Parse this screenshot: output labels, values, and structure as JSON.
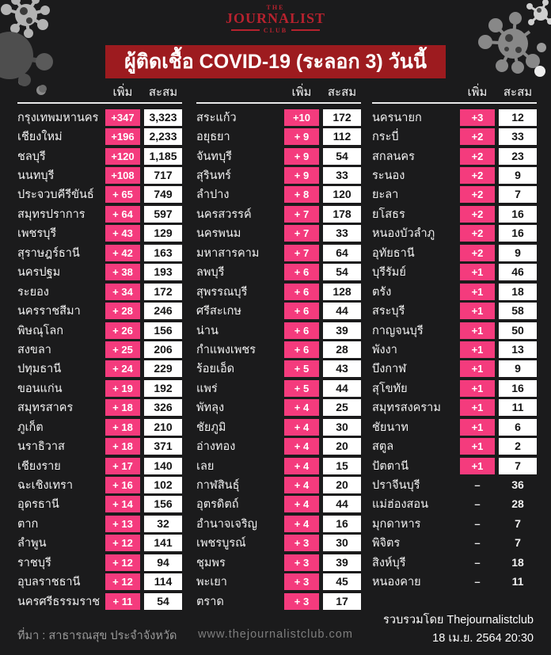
{
  "logo": {
    "the": "THE",
    "name": "JOURNALIST",
    "club": "CLUB"
  },
  "title": "ผู้ติดเชื้อ COVID-19 (ระลอก 3) วันนี้",
  "colors": {
    "accent_pink": "#f43b7d",
    "title_bar_red": "#9d1b1f",
    "logo_red": "#b6222e",
    "background": "#1b1b1c"
  },
  "footer": {
    "source": "ที่มา : สาธารณสุข ประจำจังหวัด",
    "website": "www.thejournalistclub.com",
    "credit": "รวบรวมโดย Thejournalistclub",
    "datetime": "18 เม.ย. 2564 20:30"
  },
  "chart_data": {
    "type": "table",
    "title": "ผู้ติดเชื้อ COVID-19 (ระลอก 3) วันนี้",
    "column_headers": [
      "เพิ่ม",
      "สะสม"
    ],
    "columns": [
      {
        "rows": [
          {
            "province": "กรุงเทพมหานคร",
            "added": "+347",
            "total": "3,323"
          },
          {
            "province": "เชียงใหม่",
            "added": "+196",
            "total": "2,233"
          },
          {
            "province": "ชลบุรี",
            "added": "+120",
            "total": "1,185"
          },
          {
            "province": "นนทบุรี",
            "added": "+108",
            "total": "717"
          },
          {
            "province": "ประจวบคีรีขันธ์",
            "added": "+ 65",
            "total": "749"
          },
          {
            "province": "สมุทรปราการ",
            "added": "+ 64",
            "total": "597"
          },
          {
            "province": "เพชรบุรี",
            "added": "+ 43",
            "total": "129"
          },
          {
            "province": "สุราษฎร์ธานี",
            "added": "+ 42",
            "total": "163"
          },
          {
            "province": "นครปฐม",
            "added": "+ 38",
            "total": "193"
          },
          {
            "province": "ระยอง",
            "added": "+ 34",
            "total": "172"
          },
          {
            "province": "นครราชสีมา",
            "added": "+ 28",
            "total": "246"
          },
          {
            "province": "พิษณุโลก",
            "added": "+ 26",
            "total": "156"
          },
          {
            "province": "สงขลา",
            "added": "+ 25",
            "total": "206"
          },
          {
            "province": "ปทุมธานี",
            "added": "+ 24",
            "total": "229"
          },
          {
            "province": "ขอนแก่น",
            "added": "+ 19",
            "total": "192"
          },
          {
            "province": "สมุทรสาคร",
            "added": "+ 18",
            "total": "326"
          },
          {
            "province": "ภูเก็ต",
            "added": "+ 18",
            "total": "210"
          },
          {
            "province": "นราธิวาส",
            "added": "+ 18",
            "total": "371"
          },
          {
            "province": "เชียงราย",
            "added": "+ 17",
            "total": "140"
          },
          {
            "province": "ฉะเชิงเทรา",
            "added": "+ 16",
            "total": "102"
          },
          {
            "province": "อุดรธานี",
            "added": "+ 14",
            "total": "156"
          },
          {
            "province": "ตาก",
            "added": "+ 13",
            "total": "32"
          },
          {
            "province": "ลำพูน",
            "added": "+ 12",
            "total": "141"
          },
          {
            "province": "ราชบุรี",
            "added": "+ 12",
            "total": "94"
          },
          {
            "province": "อุบลราชธานี",
            "added": "+ 12",
            "total": "114"
          },
          {
            "province": "นครศรีธรรมราช",
            "added": "+ 11",
            "total": "54"
          }
        ]
      },
      {
        "rows": [
          {
            "province": "สระแก้ว",
            "added": "+10",
            "total": "172"
          },
          {
            "province": "อยุธยา",
            "added": "+ 9",
            "total": "112"
          },
          {
            "province": "จันทบุรี",
            "added": "+ 9",
            "total": "54"
          },
          {
            "province": "สุรินทร์",
            "added": "+ 9",
            "total": "33"
          },
          {
            "province": "ลำปาง",
            "added": "+ 8",
            "total": "120"
          },
          {
            "province": "นครสวรรค์",
            "added": "+ 7",
            "total": "178"
          },
          {
            "province": "นครพนม",
            "added": "+ 7",
            "total": "33"
          },
          {
            "province": "มหาสารคาม",
            "added": "+ 7",
            "total": "64"
          },
          {
            "province": "ลพบุรี",
            "added": "+ 6",
            "total": "54"
          },
          {
            "province": "สุพรรณบุรี",
            "added": "+ 6",
            "total": "128"
          },
          {
            "province": "ศรีสะเกษ",
            "added": "+ 6",
            "total": "44"
          },
          {
            "province": "น่าน",
            "added": "+ 6",
            "total": "39"
          },
          {
            "province": "กำแพงเพชร",
            "added": "+ 6",
            "total": "28"
          },
          {
            "province": "ร้อยเอ็ด",
            "added": "+ 5",
            "total": "43"
          },
          {
            "province": "แพร่",
            "added": "+ 5",
            "total": "44"
          },
          {
            "province": "พัทลุง",
            "added": "+ 4",
            "total": "25"
          },
          {
            "province": "ชัยภูมิ",
            "added": "+ 4",
            "total": "30"
          },
          {
            "province": "อ่างทอง",
            "added": "+ 4",
            "total": "20"
          },
          {
            "province": "เลย",
            "added": "+ 4",
            "total": "15"
          },
          {
            "province": "กาฬสินธุ์",
            "added": "+ 4",
            "total": "20"
          },
          {
            "province": "อุตรดิตถ์",
            "added": "+ 4",
            "total": "44"
          },
          {
            "province": "อำนาจเจริญ",
            "added": "+ 4",
            "total": "16"
          },
          {
            "province": "เพชรบูรณ์",
            "added": "+ 3",
            "total": "30"
          },
          {
            "province": "ชุมพร",
            "added": "+ 3",
            "total": "39"
          },
          {
            "province": "พะเยา",
            "added": "+ 3",
            "total": "45"
          },
          {
            "province": "ตราด",
            "added": "+ 3",
            "total": "17"
          }
        ]
      },
      {
        "rows": [
          {
            "province": "นครนายก",
            "added": "+3",
            "total": "12"
          },
          {
            "province": "กระบี่",
            "added": "+2",
            "total": "33"
          },
          {
            "province": "สกลนคร",
            "added": "+2",
            "total": "23"
          },
          {
            "province": "ระนอง",
            "added": "+2",
            "total": "9"
          },
          {
            "province": "ยะลา",
            "added": "+2",
            "total": "7"
          },
          {
            "province": "ยโสธร",
            "added": "+2",
            "total": "16"
          },
          {
            "province": "หนองบัวลำภู",
            "added": "+2",
            "total": "16"
          },
          {
            "province": "อุทัยธานี",
            "added": "+2",
            "total": "9"
          },
          {
            "province": "บุรีรัมย์",
            "added": "+1",
            "total": "46"
          },
          {
            "province": "ตรัง",
            "added": "+1",
            "total": "18"
          },
          {
            "province": "สระบุรี",
            "added": "+1",
            "total": "58"
          },
          {
            "province": "กาญจนบุรี",
            "added": "+1",
            "total": "50"
          },
          {
            "province": "พังงา",
            "added": "+1",
            "total": "13"
          },
          {
            "province": "บึงกาฬ",
            "added": "+1",
            "total": "9"
          },
          {
            "province": "สุโขทัย",
            "added": "+1",
            "total": "16"
          },
          {
            "province": "สมุทรสงคราม",
            "added": "+1",
            "total": "11"
          },
          {
            "province": "ชัยนาท",
            "added": "+1",
            "total": "6"
          },
          {
            "province": "สตูล",
            "added": "+1",
            "total": "2"
          },
          {
            "province": "ปัตตานี",
            "added": "+1",
            "total": "7"
          },
          {
            "province": "ปราจีนบุรี",
            "added": "–",
            "total": "36"
          },
          {
            "province": "แม่ฮ่องสอน",
            "added": "–",
            "total": "28"
          },
          {
            "province": "มุกดาหาร",
            "added": "–",
            "total": "7"
          },
          {
            "province": "พิจิตร",
            "added": "–",
            "total": "7"
          },
          {
            "province": "สิงห์บุรี",
            "added": "–",
            "total": "18"
          },
          {
            "province": "หนองคาย",
            "added": "–",
            "total": "11"
          }
        ]
      }
    ]
  }
}
